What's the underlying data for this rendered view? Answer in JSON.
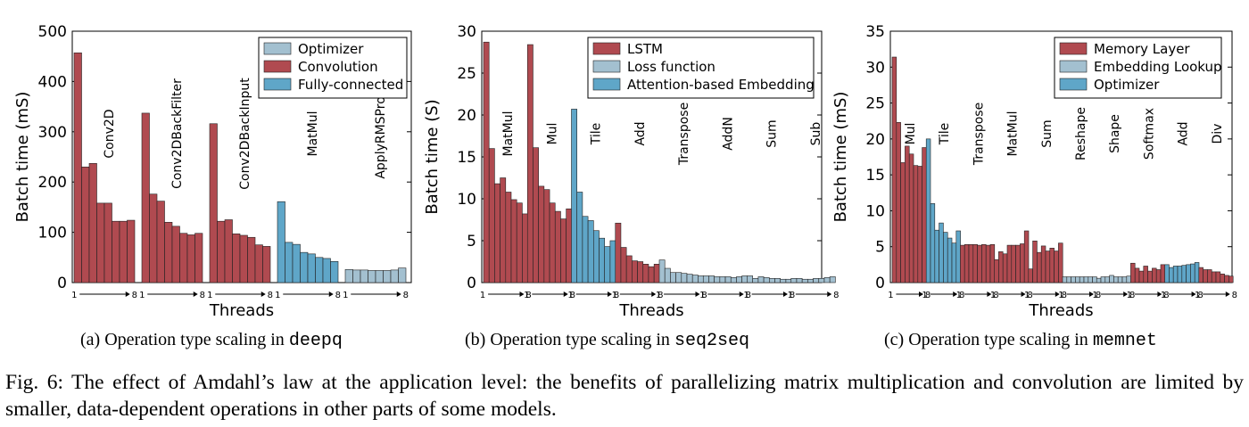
{
  "colors": {
    "red": "#b04a50",
    "blue": "#5fa6c8",
    "gray": "#a3c0d0"
  },
  "figure_caption": "Fig. 6: The effect of Amdahl’s law at the application level: the benefits of parallelizing matrix multiplication and convolution are limited by smaller, data-dependent operations in other parts of some models.",
  "subcaptions": [
    {
      "prefix": "(a) Operation type scaling in ",
      "mono": "deepq"
    },
    {
      "prefix": "(b) Operation type scaling in ",
      "mono": "seq2seq"
    },
    {
      "prefix": "(c) Operation type scaling in ",
      "mono": "memnet"
    }
  ],
  "chart_data": [
    {
      "type": "bar",
      "xlabel": "Threads",
      "ylabel": "Batch time (mS)",
      "ylim": [
        0,
        500
      ],
      "yticks": [
        0,
        100,
        200,
        300,
        400,
        500
      ],
      "thread_range_label": [
        "1",
        "8"
      ],
      "legend": [
        {
          "name": "Optimizer",
          "color": "gray"
        },
        {
          "name": "Convolution",
          "color": "red"
        },
        {
          "name": "Fully-connected",
          "color": "blue"
        }
      ],
      "groups": [
        {
          "name": "Conv2D",
          "color": "red",
          "values": [
            457,
            230,
            237,
            158,
            158,
            122,
            122,
            124
          ]
        },
        {
          "name": "Conv2DBackFilter",
          "color": "red",
          "values": [
            337,
            176,
            162,
            120,
            112,
            98,
            95,
            98
          ]
        },
        {
          "name": "Conv2DBackInput",
          "color": "red",
          "values": [
            316,
            122,
            125,
            97,
            94,
            90,
            75,
            72
          ]
        },
        {
          "name": "MatMul",
          "color": "blue",
          "values": [
            161,
            80,
            76,
            60,
            57,
            50,
            48,
            42
          ]
        },
        {
          "name": "ApplyRMSProp",
          "color": "gray",
          "values": [
            26,
            25,
            25,
            24,
            24,
            24,
            25,
            29
          ]
        }
      ]
    },
    {
      "type": "bar",
      "xlabel": "Threads",
      "ylabel": "Batch time (S)",
      "ylim": [
        0,
        30
      ],
      "yticks": [
        0,
        5,
        10,
        15,
        20,
        25,
        30
      ],
      "thread_range_label": [
        "1",
        "8"
      ],
      "legend": [
        {
          "name": "LSTM",
          "color": "red"
        },
        {
          "name": "Loss function",
          "color": "gray"
        },
        {
          "name": "Attention-based Embedding",
          "color": "blue"
        }
      ],
      "groups": [
        {
          "name": "MatMul",
          "color": "red",
          "values": [
            28.7,
            16.0,
            11.8,
            12.5,
            10.8,
            9.9,
            9.5,
            8.2
          ]
        },
        {
          "name": "Mul",
          "color": "red",
          "values": [
            28.4,
            16.1,
            11.5,
            11.1,
            9.5,
            8.5,
            7.6,
            8.8
          ]
        },
        {
          "name": "Tile",
          "color": "blue",
          "values": [
            20.7,
            10.8,
            7.9,
            7.4,
            6.2,
            5.3,
            4.3,
            5.0
          ]
        },
        {
          "name": "Add",
          "color": "red",
          "values": [
            7.1,
            4.2,
            3.2,
            2.6,
            2.5,
            2.2,
            1.9,
            2.2
          ]
        },
        {
          "name": "Transpose",
          "color": "gray",
          "values": [
            2.7,
            1.7,
            1.2,
            1.2,
            1.1,
            1.0,
            0.9,
            0.8
          ]
        },
        {
          "name": "AddN",
          "color": "gray",
          "values": [
            0.8,
            0.8,
            0.7,
            0.7,
            0.7,
            0.6,
            0.7,
            0.8
          ]
        },
        {
          "name": "Sum",
          "color": "gray",
          "values": [
            0.8,
            0.5,
            0.7,
            0.6,
            0.5,
            0.5,
            0.4,
            0.4
          ]
        },
        {
          "name": "Sub",
          "color": "gray",
          "values": [
            0.5,
            0.5,
            0.4,
            0.4,
            0.5,
            0.5,
            0.6,
            0.7
          ]
        }
      ]
    },
    {
      "type": "bar",
      "xlabel": "Threads",
      "ylabel": "Batch time (mS)",
      "ylim": [
        0,
        35
      ],
      "yticks": [
        0,
        5,
        10,
        15,
        20,
        25,
        30,
        35
      ],
      "thread_range_label": [
        "1",
        "8"
      ],
      "legend": [
        {
          "name": "Memory Layer",
          "color": "red"
        },
        {
          "name": "Embedding Lookup",
          "color": "gray"
        },
        {
          "name": "Optimizer",
          "color": "blue"
        }
      ],
      "groups": [
        {
          "name": "Mul",
          "color": "red",
          "values": [
            31.4,
            22.3,
            16.7,
            19.0,
            17.9,
            16.3,
            16.2,
            18.8
          ]
        },
        {
          "name": "Tile",
          "color": "blue",
          "values": [
            20.0,
            11.0,
            7.3,
            8.3,
            7.0,
            6.2,
            5.5,
            7.2
          ]
        },
        {
          "name": "Transpose",
          "color": "red",
          "values": [
            5.2,
            5.3,
            5.3,
            5.3,
            5.2,
            5.3,
            5.2,
            5.3
          ]
        },
        {
          "name": "MatMul",
          "color": "red",
          "values": [
            3.2,
            4.3,
            4.0,
            5.2,
            5.2,
            5.2,
            5.4,
            7.2
          ]
        },
        {
          "name": "Sum",
          "color": "red",
          "values": [
            1.9,
            5.8,
            4.2,
            5.1,
            4.4,
            4.8,
            4.4,
            5.5
          ]
        },
        {
          "name": "Reshape",
          "color": "gray",
          "values": [
            0.8,
            0.8,
            0.8,
            0.8,
            0.8,
            0.8,
            0.8,
            0.8
          ]
        },
        {
          "name": "Shape",
          "color": "gray",
          "values": [
            0.6,
            0.8,
            0.8,
            1.0,
            0.8,
            0.8,
            0.8,
            0.9
          ]
        },
        {
          "name": "Softmax",
          "color": "red",
          "values": [
            2.7,
            2.0,
            1.6,
            2.3,
            1.6,
            2.0,
            1.8,
            2.5
          ]
        },
        {
          "name": "Add",
          "color": "blue",
          "values": [
            2.5,
            2.1,
            2.3,
            2.3,
            2.4,
            2.5,
            2.6,
            2.8
          ]
        },
        {
          "name": "Div",
          "color": "red",
          "values": [
            2.1,
            1.8,
            1.8,
            1.5,
            1.5,
            1.2,
            1.0,
            0.9
          ]
        }
      ]
    }
  ]
}
